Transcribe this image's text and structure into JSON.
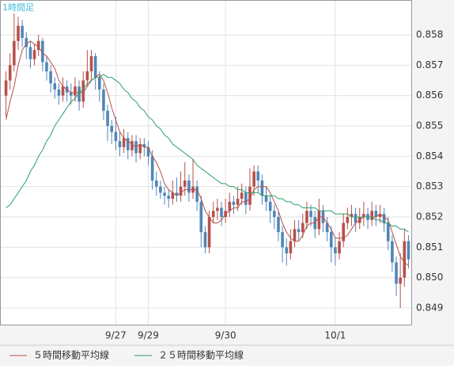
{
  "chart_data": {
    "type": "candlestick",
    "title": "1時間足",
    "categories": [
      null,
      null,
      null,
      null,
      null,
      null,
      null,
      null,
      null,
      null,
      null,
      null,
      null,
      null,
      null,
      null,
      null,
      null,
      null,
      null,
      null,
      null,
      null,
      null,
      null,
      null,
      null,
      "9/27",
      null,
      null,
      null,
      null,
      null,
      null,
      null,
      "9/29",
      null,
      null,
      null,
      null,
      null,
      null,
      null,
      null,
      null,
      null,
      null,
      null,
      null,
      null,
      null,
      null,
      null,
      null,
      "9/30",
      null,
      null,
      null,
      null,
      null,
      null,
      null,
      null,
      null,
      null,
      null,
      null,
      null,
      null,
      null,
      null,
      null,
      null,
      null,
      null,
      null,
      null,
      null,
      null,
      null,
      null,
      "10/1",
      null,
      null,
      null,
      null,
      null,
      null,
      null,
      null,
      null,
      null,
      null,
      null,
      null,
      null,
      null,
      null,
      null,
      null
    ],
    "open": [
      0.856,
      0.8565,
      0.857,
      0.8578,
      0.8583,
      0.8579,
      0.8576,
      0.8572,
      0.8575,
      0.8578,
      0.8571,
      0.8568,
      0.8564,
      0.8562,
      0.856,
      0.8563,
      0.8561,
      0.856,
      0.8563,
      0.8558,
      0.8565,
      0.8568,
      0.8573,
      0.8566,
      0.8562,
      0.8555,
      0.855,
      0.8548,
      0.8545,
      0.8543,
      0.8546,
      0.8542,
      0.8545,
      0.8541,
      0.8544,
      0.8543,
      0.854,
      0.8532,
      0.853,
      0.8528,
      0.8527,
      0.8526,
      0.8528,
      0.8527,
      0.853,
      0.8532,
      0.8528,
      0.853,
      0.8525,
      0.8515,
      0.851,
      0.852,
      0.8522,
      0.8523,
      0.852,
      0.8522,
      0.8525,
      0.8524,
      0.8526,
      0.8528,
      0.8524,
      0.853,
      0.8535,
      0.8532,
      0.8527,
      0.8525,
      0.8522,
      0.852,
      0.8515,
      0.851,
      0.8508,
      0.8512,
      0.8516,
      0.8515,
      0.8518,
      0.8522,
      0.852,
      0.8516,
      0.8522,
      0.8518,
      0.8515,
      0.851,
      0.8508,
      0.8512,
      0.8518,
      0.852,
      0.8521,
      0.8518,
      0.852,
      0.8521,
      0.8519,
      0.8522,
      0.852,
      0.8521,
      0.8518,
      0.8512,
      0.8505,
      0.8498,
      0.85,
      0.8512
    ],
    "high": [
      0.8568,
      0.8574,
      0.8587,
      0.8586,
      0.8585,
      0.8581,
      0.8578,
      0.8577,
      0.858,
      0.8579,
      0.8573,
      0.857,
      0.8566,
      0.8564,
      0.8566,
      0.8565,
      0.8564,
      0.8566,
      0.8565,
      0.8568,
      0.8575,
      0.8575,
      0.8574,
      0.8568,
      0.8564,
      0.8557,
      0.8552,
      0.8553,
      0.8548,
      0.8549,
      0.8548,
      0.8547,
      0.8547,
      0.8546,
      0.8546,
      0.8545,
      0.8542,
      0.8535,
      0.8532,
      0.853,
      0.8529,
      0.8532,
      0.8533,
      0.8535,
      0.8538,
      0.8534,
      0.8539,
      0.8532,
      0.8527,
      0.8517,
      0.8522,
      0.8525,
      0.8526,
      0.8525,
      0.8526,
      0.8528,
      0.8527,
      0.853,
      0.8531,
      0.853,
      0.8536,
      0.8537,
      0.8537,
      0.8534,
      0.853,
      0.8527,
      0.8524,
      0.8522,
      0.8517,
      0.8513,
      0.8516,
      0.8519,
      0.8519,
      0.8521,
      0.8525,
      0.8524,
      0.8522,
      0.8526,
      0.8524,
      0.852,
      0.8517,
      0.8513,
      0.8515,
      0.8521,
      0.8523,
      0.8524,
      0.8523,
      0.8523,
      0.8525,
      0.8523,
      0.8525,
      0.8524,
      0.8524,
      0.8523,
      0.852,
      0.8514,
      0.8507,
      0.8508,
      0.8516,
      0.8514
    ],
    "low": [
      0.8553,
      0.8562,
      0.8568,
      0.8575,
      0.8576,
      0.8572,
      0.8569,
      0.857,
      0.8573,
      0.8568,
      0.8565,
      0.8561,
      0.8559,
      0.8557,
      0.8558,
      0.8558,
      0.8557,
      0.8558,
      0.8555,
      0.8556,
      0.8563,
      0.8565,
      0.8562,
      0.8558,
      0.8552,
      0.8545,
      0.8544,
      0.8542,
      0.854,
      0.8541,
      0.8539,
      0.854,
      0.8538,
      0.8539,
      0.854,
      0.8537,
      0.8529,
      0.8527,
      0.8526,
      0.8524,
      0.8523,
      0.8524,
      0.8525,
      0.8525,
      0.8527,
      0.8525,
      0.8526,
      0.8522,
      0.851,
      0.8508,
      0.8508,
      0.8518,
      0.8519,
      0.8517,
      0.8518,
      0.852,
      0.8521,
      0.8522,
      0.8524,
      0.8521,
      0.8522,
      0.8527,
      0.8528,
      0.8524,
      0.8522,
      0.8518,
      0.8516,
      0.8512,
      0.8505,
      0.8504,
      0.8506,
      0.851,
      0.8512,
      0.8513,
      0.8516,
      0.8517,
      0.8513,
      0.8514,
      0.8515,
      0.8512,
      0.8505,
      0.8504,
      0.8506,
      0.851,
      0.8516,
      0.8517,
      0.8515,
      0.8516,
      0.8517,
      0.8516,
      0.8517,
      0.8517,
      0.8518,
      0.8515,
      0.8509,
      0.8502,
      0.8494,
      0.849,
      0.8497,
      0.8503
    ],
    "close": [
      0.8565,
      0.857,
      0.8578,
      0.8583,
      0.8579,
      0.8576,
      0.8572,
      0.8575,
      0.8578,
      0.8571,
      0.8568,
      0.8564,
      0.8562,
      0.856,
      0.8563,
      0.8561,
      0.856,
      0.8563,
      0.8558,
      0.8565,
      0.8568,
      0.8573,
      0.8566,
      0.8562,
      0.8555,
      0.855,
      0.8548,
      0.8545,
      0.8543,
      0.8546,
      0.8542,
      0.8545,
      0.8541,
      0.8544,
      0.8543,
      0.854,
      0.8532,
      0.853,
      0.8528,
      0.8527,
      0.8526,
      0.8528,
      0.8527,
      0.853,
      0.8532,
      0.8528,
      0.853,
      0.8525,
      0.8515,
      0.851,
      0.852,
      0.8522,
      0.8523,
      0.852,
      0.8522,
      0.8525,
      0.8524,
      0.8526,
      0.8528,
      0.8524,
      0.853,
      0.8535,
      0.8532,
      0.8527,
      0.8525,
      0.8522,
      0.852,
      0.8515,
      0.851,
      0.8508,
      0.8512,
      0.8516,
      0.8515,
      0.8518,
      0.8522,
      0.852,
      0.8516,
      0.8522,
      0.8518,
      0.8515,
      0.851,
      0.8508,
      0.8512,
      0.8518,
      0.852,
      0.8521,
      0.8518,
      0.852,
      0.8521,
      0.8519,
      0.8522,
      0.852,
      0.8521,
      0.8518,
      0.8512,
      0.8505,
      0.8498,
      0.85,
      0.8512,
      0.8506
    ],
    "up_color": "#b8504a",
    "down_color": "#4f86b8",
    "series": [
      {
        "name": "５時間移動平均線",
        "color": "#b8504a",
        "values": [
          0.8552,
          0.8558,
          0.8563,
          0.857,
          0.8575,
          0.8577,
          0.8578,
          0.8577,
          0.8576,
          0.8574,
          0.8573,
          0.8571,
          0.8569,
          0.8565,
          0.8563,
          0.8562,
          0.8561,
          0.8561,
          0.8561,
          0.8561,
          0.8563,
          0.8565,
          0.8566,
          0.8567,
          0.8565,
          0.8561,
          0.8556,
          0.8552,
          0.8548,
          0.8546,
          0.8545,
          0.8544,
          0.8543,
          0.8544,
          0.8543,
          0.8543,
          0.854,
          0.8538,
          0.8535,
          0.8531,
          0.8529,
          0.8528,
          0.8527,
          0.8528,
          0.8529,
          0.8529,
          0.8529,
          0.8529,
          0.8526,
          0.8522,
          0.852,
          0.8518,
          0.8518,
          0.8519,
          0.8521,
          0.8522,
          0.8523,
          0.8523,
          0.8525,
          0.8525,
          0.8526,
          0.8529,
          0.853,
          0.853,
          0.853,
          0.8528,
          0.8525,
          0.8522,
          0.8518,
          0.8515,
          0.8513,
          0.8512,
          0.8512,
          0.8514,
          0.8517,
          0.8518,
          0.8518,
          0.852,
          0.852,
          0.8518,
          0.8516,
          0.8513,
          0.8513,
          0.8513,
          0.8514,
          0.8516,
          0.8518,
          0.8519,
          0.852,
          0.852,
          0.852,
          0.852,
          0.8521,
          0.852,
          0.8519,
          0.8515,
          0.8511,
          0.8507,
          0.8505,
          0.8504
        ]
      },
      {
        "name": "２５時間移動平均線",
        "color": "#2e9e6a",
        "values": [
          0.8523,
          0.8524,
          0.8526,
          0.8528,
          0.853,
          0.8532,
          0.8535,
          0.8537,
          0.854,
          0.8542,
          0.8545,
          0.8547,
          0.855,
          0.8552,
          0.8554,
          0.8556,
          0.8558,
          0.8559,
          0.8561,
          0.8562,
          0.8564,
          0.8565,
          0.8566,
          0.8566,
          0.8567,
          0.8566,
          0.8566,
          0.8565,
          0.8564,
          0.8562,
          0.8561,
          0.8559,
          0.8558,
          0.8556,
          0.8555,
          0.8553,
          0.8552,
          0.855,
          0.8549,
          0.8547,
          0.8546,
          0.8544,
          0.8543,
          0.8542,
          0.8541,
          0.854,
          0.8539,
          0.8537,
          0.8536,
          0.8535,
          0.8534,
          0.8533,
          0.8532,
          0.8531,
          0.8531,
          0.853,
          0.853,
          0.8529,
          0.8529,
          0.8528,
          0.8528,
          0.8528,
          0.8528,
          0.8527,
          0.8527,
          0.8527,
          0.8527,
          0.8526,
          0.8526,
          0.8525,
          0.8525,
          0.8524,
          0.8524,
          0.8523,
          0.8523,
          0.8523,
          0.8523,
          0.8522,
          0.8522,
          0.8522,
          0.8522,
          0.8521,
          0.8521,
          0.8521,
          0.8521,
          0.852,
          0.852,
          0.852,
          0.852,
          0.852,
          0.852,
          0.8519,
          0.8519,
          0.8518,
          0.8518,
          0.8517,
          0.8517,
          0.8516,
          0.8516,
          0.8515
        ]
      }
    ],
    "ylim": [
      0.84845,
      0.85915
    ],
    "yticks": [
      0.849,
      {
        "value": 0.85,
        "label": "0.850"
      },
      0.851,
      0.852,
      0.853,
      0.854,
      0.855,
      0.856,
      0.857,
      0.858
    ],
    "grid": true
  }
}
